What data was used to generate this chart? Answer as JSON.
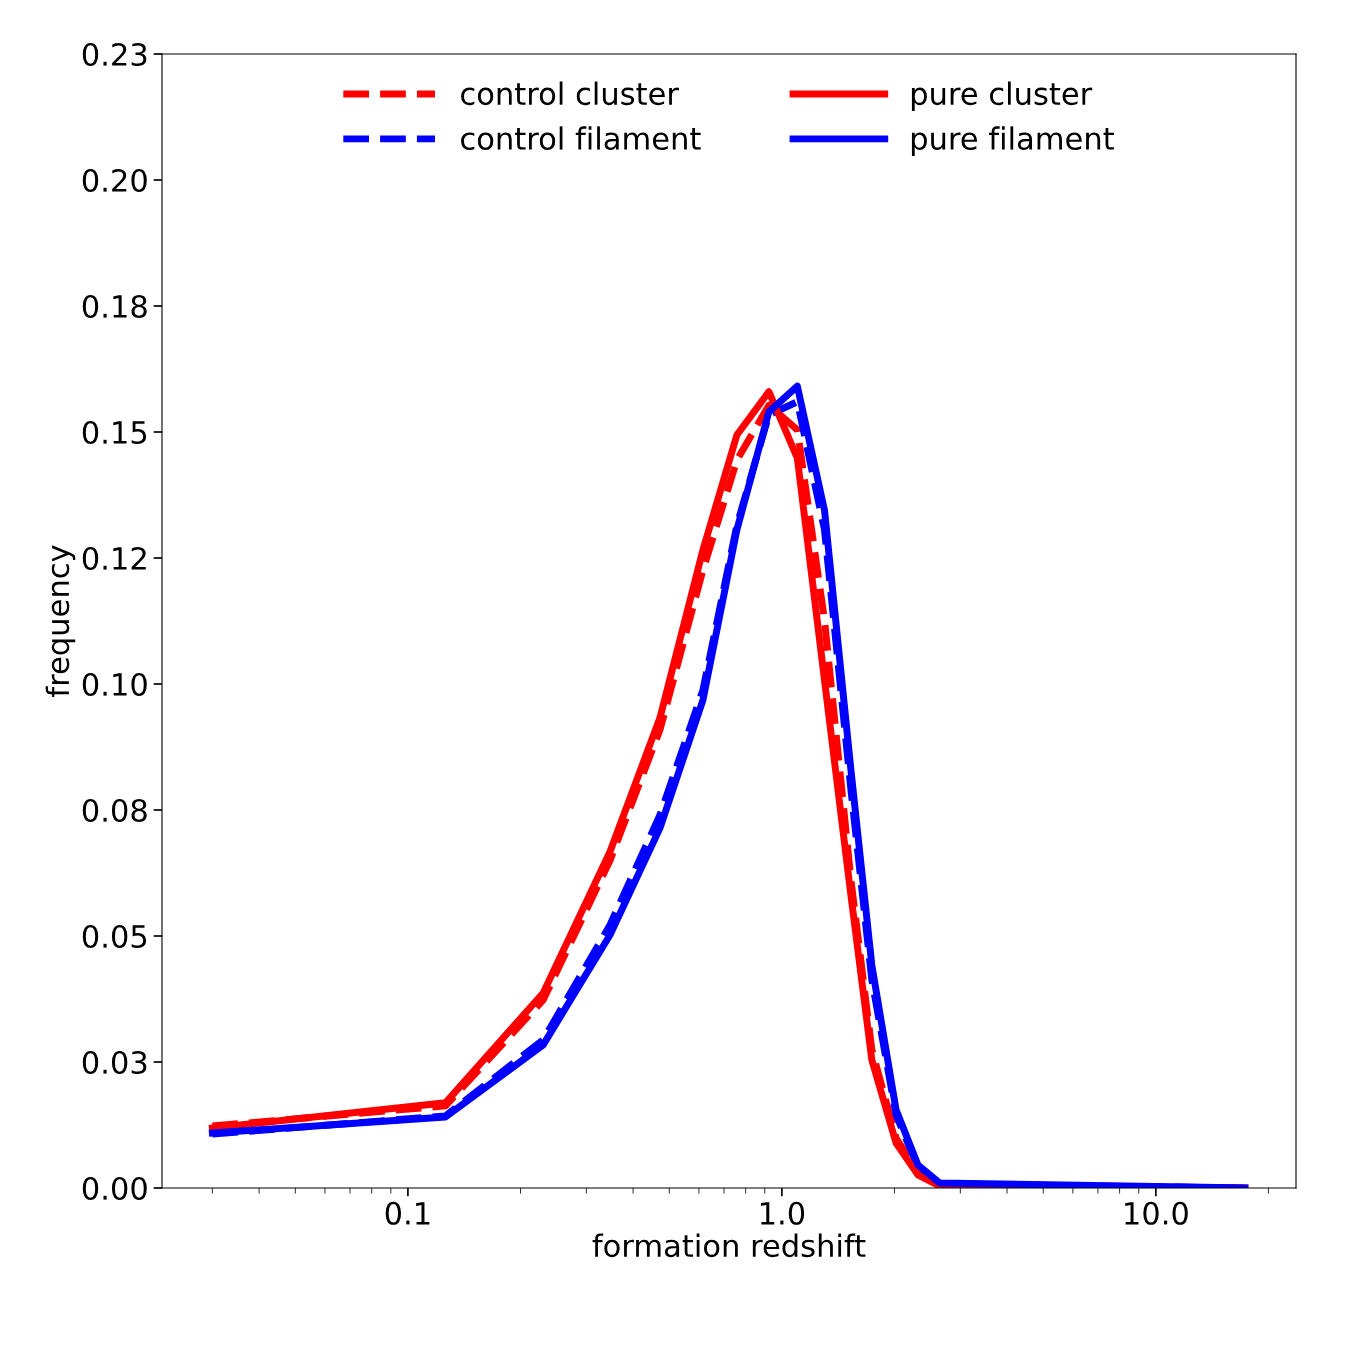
{
  "chart_data": {
    "type": "line",
    "xlabel": "formation redshift",
    "ylabel": "frequency",
    "log": "x",
    "grid": false,
    "legend": "top",
    "marker": "none",
    "xlim": [
      0.022,
      23.7
    ],
    "xticks": [
      0.1,
      {
        "value": 1,
        "label": "1.0"
      },
      {
        "value": 10,
        "label": "10.0"
      }
    ],
    "ylim": [
      0,
      0.225
    ],
    "yticks": [
      {
        "value": 0,
        "label": "0.00"
      },
      {
        "value": 0.025,
        "label": "0.03"
      },
      {
        "value": 0.05,
        "label": "0.05"
      },
      {
        "value": 0.075,
        "label": "0.08"
      },
      {
        "value": 0.1,
        "label": "0.10"
      },
      {
        "value": 0.125,
        "label": "0.12"
      },
      {
        "value": 0.15,
        "label": "0.15"
      },
      {
        "value": 0.175,
        "label": "0.18"
      },
      {
        "value": 0.2,
        "label": "0.20"
      },
      {
        "value": 0.225,
        "label": "0.23"
      }
    ],
    "x": [
      0.03,
      0.126,
      0.23,
      0.347,
      0.472,
      0.615,
      0.758,
      0.923,
      1.1,
      1.3,
      1.53,
      1.74,
      2.02,
      2.31,
      2.64,
      17.3
    ],
    "series": [
      {
        "name": "control cluster",
        "color": "#ff0000",
        "line_style": "dashed",
        "values": [
          0.0123,
          0.0163,
          0.0373,
          0.065,
          0.0909,
          0.1226,
          0.1444,
          0.1553,
          0.1504,
          0.1127,
          0.0611,
          0.0274,
          0.0099,
          0.0032,
          0.0006,
          0
        ]
      },
      {
        "name": "control filament",
        "color": "#0000ff",
        "line_style": "dashed",
        "values": [
          0.0107,
          0.0143,
          0.0294,
          0.0522,
          0.074,
          0.0988,
          0.1315,
          0.1534,
          0.156,
          0.1306,
          0.079,
          0.0413,
          0.0145,
          0.0042,
          0.0008,
          0
        ]
      },
      {
        "name": "pure cluster",
        "color": "#ff0000",
        "line_style": "solid",
        "values": [
          0.0119,
          0.0169,
          0.0387,
          0.0667,
          0.0933,
          0.1266,
          0.1494,
          0.158,
          0.1448,
          0.1008,
          0.058,
          0.0254,
          0.0089,
          0.0026,
          0.0004,
          0
        ]
      },
      {
        "name": "pure filament",
        "color": "#0000ff",
        "line_style": "solid",
        "values": [
          0.0109,
          0.0141,
          0.0284,
          0.0502,
          0.0714,
          0.0968,
          0.1306,
          0.154,
          0.1591,
          0.1345,
          0.0829,
          0.0442,
          0.0155,
          0.0046,
          0.001,
          0
        ]
      }
    ]
  }
}
